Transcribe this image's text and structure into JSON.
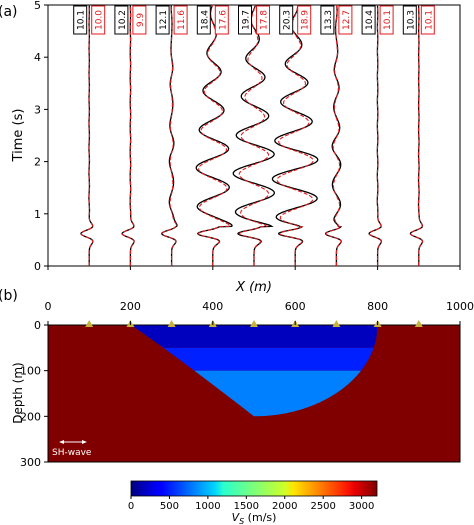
{
  "chart_data": [
    {
      "panel": "(a)",
      "type": "line",
      "xlabel": "X (m)",
      "ylabel": "Time (s)",
      "xlim": [
        0,
        1000
      ],
      "ylim": [
        0,
        5
      ],
      "yticks": [
        0,
        1,
        2,
        3,
        4,
        5
      ],
      "grid": false,
      "colors": {
        "reference": "#000000",
        "estimate": "#e31a1c"
      },
      "series": [
        {
          "x": 100,
          "black_label": "10.1",
          "red_label": "10.0"
        },
        {
          "x": 200,
          "black_label": "10.2",
          "red_label": "9.9"
        },
        {
          "x": 300,
          "black_label": "12.1",
          "red_label": "11.6"
        },
        {
          "x": 400,
          "black_label": "18.4",
          "red_label": "17.6"
        },
        {
          "x": 500,
          "black_label": "19.7",
          "red_label": "17.8"
        },
        {
          "x": 600,
          "black_label": "20.3",
          "red_label": "18.9"
        },
        {
          "x": 700,
          "black_label": "13.3",
          "red_label": "12.7"
        },
        {
          "x": 800,
          "black_label": "10.4",
          "red_label": "10.1"
        },
        {
          "x": 900,
          "black_label": "10.3",
          "red_label": "10.1"
        }
      ],
      "first_arrival_s": 0.62
    },
    {
      "panel": "(b)",
      "type": "heatmap",
      "xlabel": "X (m)",
      "ylabel": "Depth (m)",
      "xlim": [
        0,
        1000
      ],
      "ylim": [
        300,
        0
      ],
      "xticks": [
        0,
        200,
        400,
        600,
        800,
        1000
      ],
      "yticks": [
        0,
        100,
        200,
        300
      ],
      "basin": {
        "surface_x": [
          200,
          800
        ],
        "bottom_depth": 200,
        "bottom_x": 500,
        "layers": [
          {
            "from_depth": 0,
            "to_depth": 50,
            "vs": 200
          },
          {
            "from_depth": 50,
            "to_depth": 100,
            "vs": 500
          },
          {
            "from_depth": 100,
            "to_depth": 200,
            "vs": 800
          }
        ],
        "halfspace_vs": 3200
      },
      "receivers_x": [
        100,
        200,
        300,
        400,
        500,
        600,
        700,
        800,
        900
      ],
      "receiver_color": "#c8b23c",
      "annotation": "SH-wave",
      "colorbar": {
        "label": "V_S (m/s)",
        "min": 0,
        "max": 3200,
        "ticks": [
          0,
          500,
          1000,
          1500,
          2000,
          2500,
          3000
        ],
        "colormap": "jet"
      }
    }
  ]
}
